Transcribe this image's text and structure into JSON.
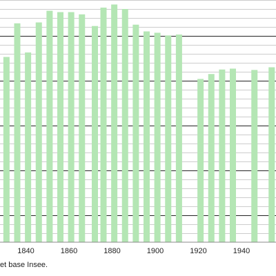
{
  "chart_data": {
    "type": "bar",
    "x": [
      1831,
      1836,
      1841,
      1846,
      1851,
      1856,
      1861,
      1866,
      1872,
      1876,
      1881,
      1886,
      1891,
      1896,
      1901,
      1906,
      1911,
      1921,
      1926,
      1931,
      1936,
      1946,
      1954
    ],
    "values": [
      1053,
      1128,
      1063,
      1130,
      1156,
      1153,
      1153,
      1148,
      1122,
      1163,
      1170,
      1160,
      1125,
      1110,
      1107,
      1101,
      1103,
      1004,
      1015,
      1025,
      1027,
      1024,
      1030
    ],
    "xlim": [
      1828,
      1956
    ],
    "ylim": [
      640,
      1180
    ],
    "gridlines": [
      660,
      680,
      700,
      720,
      740,
      760,
      780,
      800,
      820,
      840,
      860,
      880,
      900,
      920,
      940,
      960,
      980,
      1000,
      1020,
      1040,
      1060,
      1080,
      1100,
      1120,
      1140,
      1160,
      1180
    ],
    "x_ticks": [
      "1840",
      "1860",
      "1880",
      "1900",
      "1920",
      "1940"
    ],
    "x_tick_values": [
      1840,
      1860,
      1880,
      1900,
      1920,
      1940
    ],
    "grid": true,
    "bar_color": "#b4e6b4",
    "grid_color": "#cccccc",
    "major_grid_color": "#222222",
    "axis_color": "#888888"
  },
  "source_note": "et base Insee."
}
